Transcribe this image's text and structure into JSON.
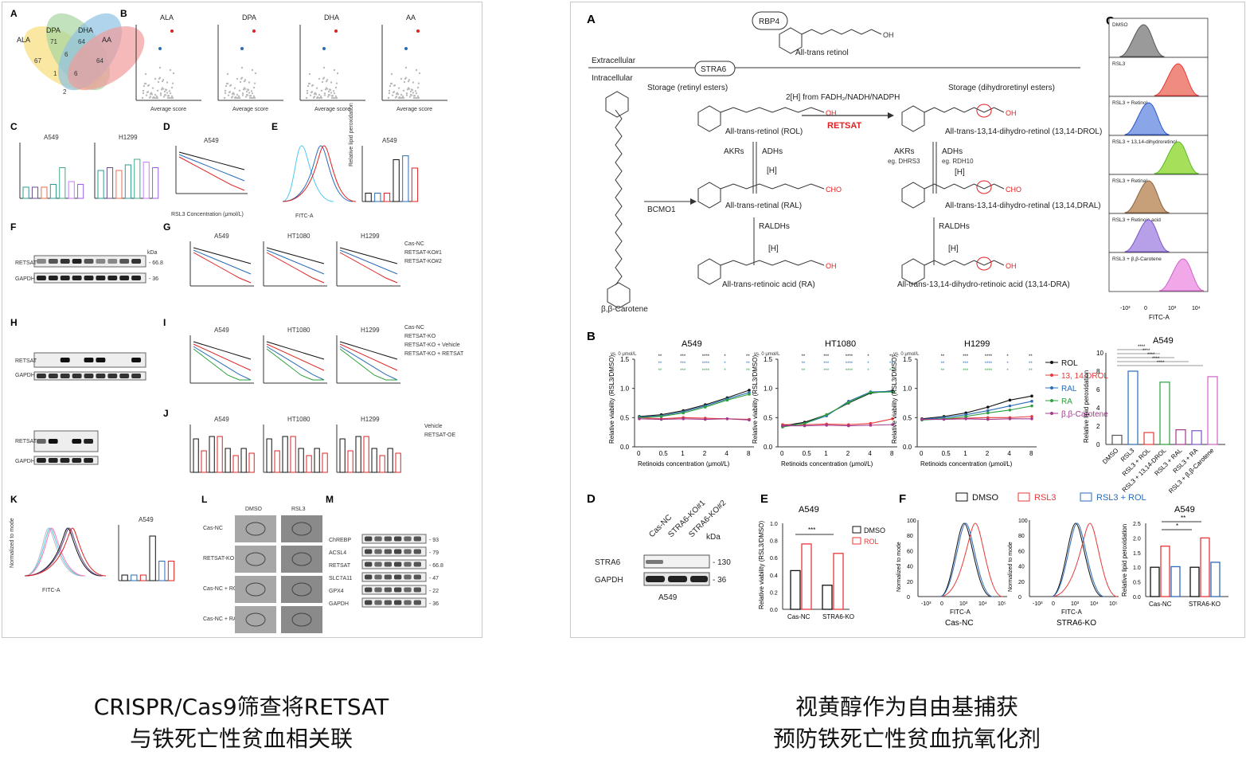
{
  "left": {
    "panels": [
      "A",
      "B",
      "C",
      "D",
      "E",
      "F",
      "G",
      "H",
      "I",
      "J",
      "K",
      "L",
      "M"
    ],
    "venn": {
      "sets": [
        "ALA",
        "DPA",
        "DHA",
        "AA"
      ],
      "values": [
        "67",
        "71",
        "64",
        "64",
        "6",
        "0",
        "1",
        "6",
        "0",
        "1",
        "2",
        "0",
        "0",
        "1",
        "0"
      ]
    },
    "volcano_titles": [
      "ALA",
      "DPA",
      "DHA",
      "AA"
    ],
    "volcano_xlabel": "Average score",
    "volcano_ylabel": "logFDR",
    "cell_lines": [
      "A549",
      "H1299",
      "HT1080"
    ],
    "western_labels": {
      "retsat": "RETSAT",
      "gapdh": "GAPDH",
      "kda": "kDa",
      "mw1": "- 66.8",
      "mw2": "- 36"
    },
    "series_g": [
      "Cas-NC",
      "RETSAT-KO#1",
      "RETSAT-KO#2"
    ],
    "series_i": [
      "Cas-NC",
      "RETSAT-KO",
      "RETSAT-KO + Vehicle",
      "RETSAT-KO + RETSAT"
    ],
    "series_j": [
      "Vehicle",
      "RETSAT-OE"
    ],
    "xlabel_rsl3": "RSL3 Concentration (μmol/L)",
    "m_labels": [
      "ChREBP",
      "ACSL4",
      "RETSAT",
      "SLC7A11",
      "GPX4",
      "GAPDH"
    ],
    "m_mw": [
      "- 93",
      "- 79",
      "- 66.8",
      "- 47",
      "- 22",
      "- 36"
    ],
    "l_rows": [
      "Cas-NC",
      "RETSAT-KO",
      "Cas-NC + ROL",
      "Cas-NC + RA"
    ],
    "l_cols": [
      "DMSO",
      "RSL3"
    ],
    "fitc": "FITC-A",
    "normalized_mode": "Normalized to mode",
    "lipid_perox": "Relative lipid peroxidation"
  },
  "right": {
    "pathway": {
      "rbp4": "RBP4",
      "stra6": "STRA6",
      "extracellular": "Extracellular",
      "intracellular": "Intracellular",
      "all_trans_retinol": "All-trans retinol",
      "storage_retinyl": "Storage (retinyl esters)",
      "storage_dihydro": "Storage (dihydroretinyl esters)",
      "h_source": "2[H] from FADH₂/NADH/NADPH",
      "retsat": "RETSAT",
      "rol": "All-trans-retinol (ROL)",
      "drol": "All-trans-13,14-dihydro-retinol (13,14-DROL)",
      "akrs": "AKRs",
      "adhs": "ADHs",
      "akrs_eg": "eg. DHRS3",
      "adhs_eg": "eg. RDH10",
      "h": "[H]",
      "bcmo1": "BCMO1",
      "ral": "All-trans-retinal (RAL)",
      "dral": "All-trans-13,14-dihydro-retinal (13,14,DRAL)",
      "raldhs": "RALDHs",
      "ra": "All-trans-retinoic acid (RA)",
      "dra": "All-trans-13,14-dihydro-retinoic acid (13,14-DRA)",
      "carotene": "β,β-Carotene",
      "oh": "OH",
      "cho": "CHO"
    },
    "panel_b": {
      "titles": [
        "A549",
        "HT1080",
        "H1299"
      ],
      "ylabel": "Relative viability (RSL3/DMSO)",
      "xlabel": "Retinoids concentration (μmol/L)",
      "vs": "vs. 0 μmol/L",
      "xticks": [
        "0",
        "0.5",
        "1",
        "2",
        "4",
        "8"
      ],
      "yticks": [
        "0.0",
        "0.5",
        "1.0",
        "1.5"
      ],
      "legend": [
        "ROL",
        "13, 14-DROL",
        "RAL",
        "RA",
        "β,β-Carotene"
      ]
    },
    "panel_b_bar": {
      "title": "A549",
      "ylabel": "Relative lipid peroxidation",
      "categories": [
        "DMSO",
        "RSL3",
        "RSL3 + ROL",
        "RSL3 + 13,14-DROL",
        "RSL3 + RAL",
        "RSL3 + RA",
        "RSL3 + β,β-Carotene"
      ],
      "yticks": [
        "0",
        "2",
        "4",
        "6",
        "8",
        "10"
      ],
      "sig": "****"
    },
    "panel_c": {
      "rows": [
        "DMSO",
        "RSL3",
        "RSL3 + Retinol",
        "RSL3 + 13,14-dihydroretinol",
        "RSL3 + Retinal",
        "RSL3 + Retinoic acid",
        "RSL3 + β,β-Carotene"
      ],
      "xlabel": "FITC-A",
      "xticks": [
        "-10³",
        "0",
        "10³",
        "10⁴"
      ]
    },
    "panel_d": {
      "labels": [
        "Cas-NC",
        "STRA6-KO#1",
        "STRA6-KO#2"
      ],
      "kda": "kDa",
      "stra6": "STRA6",
      "gapdh": "GAPDH",
      "mw1": "- 130",
      "mw2": "- 36",
      "cell": "A549"
    },
    "panel_e": {
      "title": "A549",
      "ylabel": "Relative viability (RSL3/DMSO)",
      "categories": [
        "Cas-NC",
        "STRA6-KO"
      ],
      "legend": [
        "DMSO",
        "ROL"
      ],
      "sig": "***",
      "yticks": [
        "0.0",
        "0.2",
        "0.4",
        "0.6",
        "0.8",
        "1.0"
      ]
    },
    "panel_f": {
      "legend": [
        "DMSO",
        "RSL3",
        "RSL3 + ROL"
      ],
      "hist_titles": [
        "Cas-NC",
        "STRA6-KO"
      ],
      "xlabel": "FITC-A",
      "ylabel": "Normalized to mode",
      "xticks": [
        "-10³",
        "0",
        "10³",
        "10⁴",
        "10⁵"
      ],
      "yticks": [
        "0",
        "20",
        "40",
        "60",
        "80",
        "100"
      ],
      "bar_title": "A549",
      "bar_ylabel": "Relative lipid peroxidation",
      "bar_yticks": [
        "0.0",
        "0.5",
        "1.0",
        "1.5",
        "2.0",
        "2.5"
      ],
      "bar_categories": [
        "Cas-NC",
        "STRA6-KO"
      ]
    }
  },
  "captions": {
    "left": [
      "CRISPR/Cas9筛查将RETSAT",
      "与铁死亡性贫血相关联"
    ],
    "right": [
      "视黄醇作为自由基捕获",
      "预防铁死亡性贫血抗氧化剂"
    ]
  },
  "chart_data": [
    {
      "type": "line",
      "title": "A549",
      "xlabel": "Retinoids concentration (μmol/L)",
      "ylabel": "Relative viability (RSL3/DMSO)",
      "categories": [
        "0",
        "0.5",
        "1",
        "2",
        "4",
        "8"
      ],
      "ylim": [
        0,
        1.5
      ],
      "series": [
        {
          "name": "ROL",
          "values": [
            0.52,
            0.55,
            0.62,
            0.72,
            0.84,
            0.97
          ]
        },
        {
          "name": "13, 14-DROL",
          "values": [
            0.5,
            0.48,
            0.5,
            0.49,
            0.48,
            0.47
          ]
        },
        {
          "name": "RAL",
          "values": [
            0.51,
            0.53,
            0.6,
            0.7,
            0.82,
            0.93
          ]
        },
        {
          "name": "RA",
          "values": [
            0.5,
            0.52,
            0.58,
            0.68,
            0.8,
            0.9
          ]
        },
        {
          "name": "β,β-Carotene",
          "values": [
            0.48,
            0.47,
            0.48,
            0.47,
            0.48,
            0.46
          ]
        }
      ]
    },
    {
      "type": "line",
      "title": "HT1080",
      "xlabel": "Retinoids concentration (μmol/L)",
      "ylabel": "Relative viability (RSL3/DMSO)",
      "categories": [
        "0",
        "0.5",
        "1",
        "2",
        "4",
        "8"
      ],
      "ylim": [
        0,
        1.5
      ],
      "series": [
        {
          "name": "ROL",
          "values": [
            0.36,
            0.42,
            0.55,
            0.75,
            0.92,
            0.96
          ]
        },
        {
          "name": "13, 14-DROL",
          "values": [
            0.38,
            0.38,
            0.39,
            0.38,
            0.4,
            0.48
          ]
        },
        {
          "name": "RAL",
          "values": [
            0.35,
            0.4,
            0.53,
            0.78,
            0.94,
            0.95
          ]
        },
        {
          "name": "RA",
          "values": [
            0.34,
            0.4,
            0.55,
            0.76,
            0.93,
            0.94
          ]
        },
        {
          "name": "β,β-Carotene",
          "values": [
            0.36,
            0.36,
            0.37,
            0.36,
            0.37,
            0.38
          ]
        }
      ]
    },
    {
      "type": "line",
      "title": "H1299",
      "xlabel": "Retinoids concentration (μmol/L)",
      "ylabel": "Relative viability (RSL3/DMSO)",
      "categories": [
        "0",
        "0.5",
        "1",
        "2",
        "4",
        "8"
      ],
      "ylim": [
        0,
        1.5
      ],
      "series": [
        {
          "name": "ROL",
          "values": [
            0.48,
            0.52,
            0.58,
            0.68,
            0.8,
            0.87
          ]
        },
        {
          "name": "13, 14-DROL",
          "values": [
            0.47,
            0.48,
            0.49,
            0.5,
            0.5,
            0.52
          ]
        },
        {
          "name": "RAL",
          "values": [
            0.47,
            0.5,
            0.55,
            0.62,
            0.7,
            0.78
          ]
        },
        {
          "name": "RA",
          "values": [
            0.46,
            0.48,
            0.52,
            0.58,
            0.63,
            0.7
          ]
        },
        {
          "name": "β,β-Carotene",
          "values": [
            0.47,
            0.47,
            0.48,
            0.47,
            0.48,
            0.48
          ]
        }
      ]
    },
    {
      "type": "bar",
      "title": "A549",
      "ylabel": "Relative lipid peroxidation",
      "categories": [
        "DMSO",
        "RSL3",
        "RSL3 + ROL",
        "RSL3 + 13,14-DROL",
        "RSL3 + RAL",
        "RSL3 + RA",
        "RSL3 + β,β-Carotene"
      ],
      "values": [
        1.0,
        8.0,
        1.3,
        6.8,
        1.6,
        1.5,
        7.4
      ],
      "ylim": [
        0,
        10
      ]
    },
    {
      "type": "bar",
      "title": "A549",
      "ylabel": "Relative viability (RSL3/DMSO)",
      "categories": [
        "Cas-NC",
        "STRA6-KO"
      ],
      "series": [
        {
          "name": "DMSO",
          "values": [
            0.45,
            0.28
          ]
        },
        {
          "name": "ROL",
          "values": [
            0.76,
            0.65
          ]
        }
      ],
      "ylim": [
        0,
        1.0
      ]
    },
    {
      "type": "bar",
      "title": "A549",
      "ylabel": "Relative lipid peroxidation",
      "categories": [
        "Cas-NC",
        "STRA6-KO"
      ],
      "series": [
        {
          "name": "DMSO",
          "values": [
            1.0,
            1.0
          ]
        },
        {
          "name": "RSL3",
          "values": [
            1.72,
            2.0
          ]
        },
        {
          "name": "RSL3 + ROL",
          "values": [
            1.02,
            1.17
          ]
        }
      ],
      "ylim": [
        0,
        2.5
      ]
    }
  ],
  "colors": {
    "rol": "#111111",
    "drol": "#e8393a",
    "ral": "#2b6cb8",
    "ra": "#2aa13a",
    "carotene": "#a33a8c",
    "retsat_red": "#e02020",
    "pink": "#f08fd6",
    "green_light": "#a6e05a",
    "brown": "#b08860",
    "purple_light": "#b8a0e8"
  }
}
